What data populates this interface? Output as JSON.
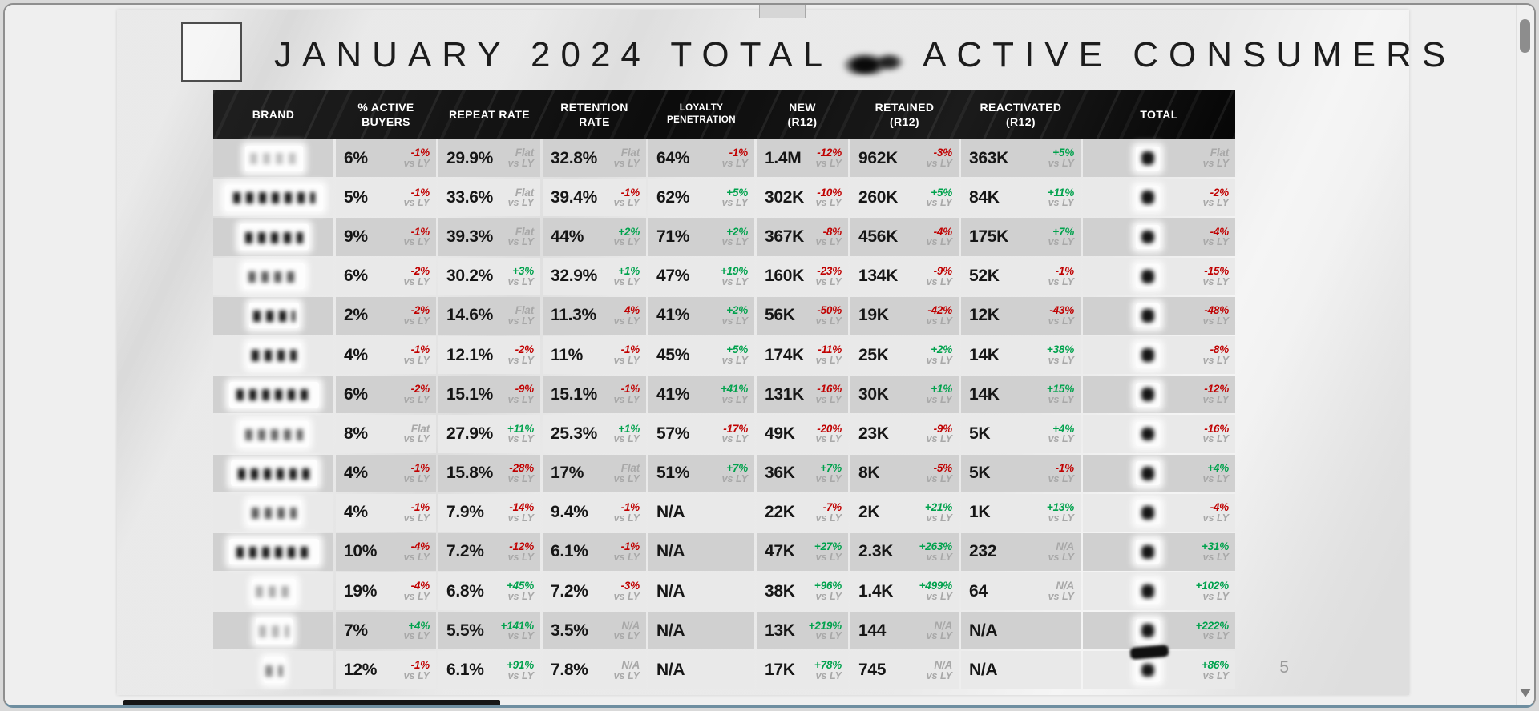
{
  "window": {
    "page_number": "5"
  },
  "slide": {
    "title_part1": "JANUARY 2024 TOTAL",
    "title_part2": "ACTIVE CONSUMERS"
  },
  "table": {
    "vs_ly": "vs LY",
    "columns": [
      {
        "lines": [
          "BRAND"
        ]
      },
      {
        "lines": [
          "% ACTIVE",
          "BUYERS"
        ]
      },
      {
        "lines": [
          "REPEAT RATE"
        ]
      },
      {
        "lines": [
          "RETENTION",
          "RATE"
        ]
      },
      {
        "lines": [
          "LOYALTY",
          "PENETRATION"
        ],
        "small": true
      },
      {
        "lines": [
          "NEW",
          "(R12)"
        ]
      },
      {
        "lines": [
          "RETAINED",
          "(R12)"
        ]
      },
      {
        "lines": [
          "REACTIVATED",
          "(R12)"
        ]
      },
      {
        "lines": [
          "TOTAL"
        ]
      }
    ],
    "rows": [
      {
        "active": {
          "v": "6%",
          "c": "-1%",
          "t": "down"
        },
        "repeat": {
          "v": "29.9%",
          "c": "Flat",
          "t": "flat"
        },
        "retention": {
          "v": "32.8%",
          "c": "Flat",
          "t": "flat"
        },
        "loyalty": {
          "v": "64%",
          "c": "-1%",
          "t": "down"
        },
        "new_r12": {
          "v": "1.4M",
          "c": "-12%",
          "t": "down"
        },
        "retained": {
          "v": "962K",
          "c": "-3%",
          "t": "down"
        },
        "reactivated": {
          "v": "363K",
          "c": "+5%",
          "t": "up"
        },
        "total": {
          "c": "Flat",
          "t": "flat"
        }
      },
      {
        "active": {
          "v": "5%",
          "c": "-1%",
          "t": "down"
        },
        "repeat": {
          "v": "33.6%",
          "c": "Flat",
          "t": "flat"
        },
        "retention": {
          "v": "39.4%",
          "c": "-1%",
          "t": "down"
        },
        "loyalty": {
          "v": "62%",
          "c": "+5%",
          "t": "up"
        },
        "new_r12": {
          "v": "302K",
          "c": "-10%",
          "t": "down"
        },
        "retained": {
          "v": "260K",
          "c": "+5%",
          "t": "up"
        },
        "reactivated": {
          "v": "84K",
          "c": "+11%",
          "t": "up"
        },
        "total": {
          "c": "-2%",
          "t": "down"
        }
      },
      {
        "active": {
          "v": "9%",
          "c": "-1%",
          "t": "down"
        },
        "repeat": {
          "v": "39.3%",
          "c": "Flat",
          "t": "flat"
        },
        "retention": {
          "v": "44%",
          "c": "+2%",
          "t": "up"
        },
        "loyalty": {
          "v": "71%",
          "c": "+2%",
          "t": "up"
        },
        "new_r12": {
          "v": "367K",
          "c": "-8%",
          "t": "down"
        },
        "retained": {
          "v": "456K",
          "c": "-4%",
          "t": "down"
        },
        "reactivated": {
          "v": "175K",
          "c": "+7%",
          "t": "up"
        },
        "total": {
          "c": "-4%",
          "t": "down"
        }
      },
      {
        "active": {
          "v": "6%",
          "c": "-2%",
          "t": "down"
        },
        "repeat": {
          "v": "30.2%",
          "c": "+3%",
          "t": "up"
        },
        "retention": {
          "v": "32.9%",
          "c": "+1%",
          "t": "up"
        },
        "loyalty": {
          "v": "47%",
          "c": "+19%",
          "t": "up"
        },
        "new_r12": {
          "v": "160K",
          "c": "-23%",
          "t": "down"
        },
        "retained": {
          "v": "134K",
          "c": "-9%",
          "t": "down"
        },
        "reactivated": {
          "v": "52K",
          "c": "-1%",
          "t": "down"
        },
        "total": {
          "c": "-15%",
          "t": "down"
        }
      },
      {
        "active": {
          "v": "2%",
          "c": "-2%",
          "t": "down"
        },
        "repeat": {
          "v": "14.6%",
          "c": "Flat",
          "t": "flat"
        },
        "retention": {
          "v": "11.3%",
          "c": "4%",
          "t": "down"
        },
        "loyalty": {
          "v": "41%",
          "c": "+2%",
          "t": "up"
        },
        "new_r12": {
          "v": "56K",
          "c": "-50%",
          "t": "down"
        },
        "retained": {
          "v": "19K",
          "c": "-42%",
          "t": "down"
        },
        "reactivated": {
          "v": "12K",
          "c": "-43%",
          "t": "down"
        },
        "total": {
          "c": "-48%",
          "t": "down"
        }
      },
      {
        "active": {
          "v": "4%",
          "c": "-1%",
          "t": "down"
        },
        "repeat": {
          "v": "12.1%",
          "c": "-2%",
          "t": "down"
        },
        "retention": {
          "v": "11%",
          "c": "-1%",
          "t": "down"
        },
        "loyalty": {
          "v": "45%",
          "c": "+5%",
          "t": "up"
        },
        "new_r12": {
          "v": "174K",
          "c": "-11%",
          "t": "down"
        },
        "retained": {
          "v": "25K",
          "c": "+2%",
          "t": "up"
        },
        "reactivated": {
          "v": "14K",
          "c": "+38%",
          "t": "up"
        },
        "total": {
          "c": "-8%",
          "t": "down"
        }
      },
      {
        "active": {
          "v": "6%",
          "c": "-2%",
          "t": "down"
        },
        "repeat": {
          "v": "15.1%",
          "c": "-9%",
          "t": "down"
        },
        "retention": {
          "v": "15.1%",
          "c": "-1%",
          "t": "down"
        },
        "loyalty": {
          "v": "41%",
          "c": "+41%",
          "t": "up"
        },
        "new_r12": {
          "v": "131K",
          "c": "-16%",
          "t": "down"
        },
        "retained": {
          "v": "30K",
          "c": "+1%",
          "t": "up"
        },
        "reactivated": {
          "v": "14K",
          "c": "+15%",
          "t": "up"
        },
        "total": {
          "c": "-12%",
          "t": "down"
        }
      },
      {
        "active": {
          "v": "8%",
          "c": "Flat",
          "t": "flat"
        },
        "repeat": {
          "v": "27.9%",
          "c": "+11%",
          "t": "up"
        },
        "retention": {
          "v": "25.3%",
          "c": "+1%",
          "t": "up"
        },
        "loyalty": {
          "v": "57%",
          "c": "-17%",
          "t": "down"
        },
        "new_r12": {
          "v": "49K",
          "c": "-20%",
          "t": "down"
        },
        "retained": {
          "v": "23K",
          "c": "-9%",
          "t": "down"
        },
        "reactivated": {
          "v": "5K",
          "c": "+4%",
          "t": "up"
        },
        "total": {
          "c": "-16%",
          "t": "down"
        }
      },
      {
        "active": {
          "v": "4%",
          "c": "-1%",
          "t": "down"
        },
        "repeat": {
          "v": "15.8%",
          "c": "-28%",
          "t": "down"
        },
        "retention": {
          "v": "17%",
          "c": "Flat",
          "t": "flat"
        },
        "loyalty": {
          "v": "51%",
          "c": "+7%",
          "t": "up"
        },
        "new_r12": {
          "v": "36K",
          "c": "+7%",
          "t": "up"
        },
        "retained": {
          "v": "8K",
          "c": "-5%",
          "t": "down"
        },
        "reactivated": {
          "v": "5K",
          "c": "-1%",
          "t": "down"
        },
        "total": {
          "c": "+4%",
          "t": "up"
        }
      },
      {
        "active": {
          "v": "4%",
          "c": "-1%",
          "t": "down"
        },
        "repeat": {
          "v": "7.9%",
          "c": "-14%",
          "t": "down"
        },
        "retention": {
          "v": "9.4%",
          "c": "-1%",
          "t": "down"
        },
        "loyalty": {
          "v": "N/A",
          "c": "",
          "t": "na"
        },
        "new_r12": {
          "v": "22K",
          "c": "-7%",
          "t": "down"
        },
        "retained": {
          "v": "2K",
          "c": "+21%",
          "t": "up"
        },
        "reactivated": {
          "v": "1K",
          "c": "+13%",
          "t": "up"
        },
        "total": {
          "c": "-4%",
          "t": "down"
        }
      },
      {
        "active": {
          "v": "10%",
          "c": "-4%",
          "t": "down"
        },
        "repeat": {
          "v": "7.2%",
          "c": "-12%",
          "t": "down"
        },
        "retention": {
          "v": "6.1%",
          "c": "-1%",
          "t": "down"
        },
        "loyalty": {
          "v": "N/A",
          "c": "",
          "t": "na"
        },
        "new_r12": {
          "v": "47K",
          "c": "+27%",
          "t": "up"
        },
        "retained": {
          "v": "2.3K",
          "c": "+263%",
          "t": "up"
        },
        "reactivated": {
          "v": "232",
          "c": "N/A",
          "t": "na"
        },
        "total": {
          "c": "+31%",
          "t": "up"
        }
      },
      {
        "active": {
          "v": "19%",
          "c": "-4%",
          "t": "down"
        },
        "repeat": {
          "v": "6.8%",
          "c": "+45%",
          "t": "up"
        },
        "retention": {
          "v": "7.2%",
          "c": "-3%",
          "t": "down"
        },
        "loyalty": {
          "v": "N/A",
          "c": "",
          "t": "na"
        },
        "new_r12": {
          "v": "38K",
          "c": "+96%",
          "t": "up"
        },
        "retained": {
          "v": "1.4K",
          "c": "+499%",
          "t": "up"
        },
        "reactivated": {
          "v": "64",
          "c": "N/A",
          "t": "na"
        },
        "total": {
          "c": "+102%",
          "t": "up"
        }
      },
      {
        "active": {
          "v": "7%",
          "c": "+4%",
          "t": "up"
        },
        "repeat": {
          "v": "5.5%",
          "c": "+141%",
          "t": "up"
        },
        "retention": {
          "v": "3.5%",
          "c": "N/A",
          "t": "na"
        },
        "loyalty": {
          "v": "N/A",
          "c": "",
          "t": "na"
        },
        "new_r12": {
          "v": "13K",
          "c": "+219%",
          "t": "up"
        },
        "retained": {
          "v": "144",
          "c": "N/A",
          "t": "na"
        },
        "reactivated": {
          "v": "N/A",
          "c": "",
          "t": "na"
        },
        "total": {
          "c": "+222%",
          "t": "up"
        }
      },
      {
        "active": {
          "v": "12%",
          "c": "-1%",
          "t": "down"
        },
        "repeat": {
          "v": "6.1%",
          "c": "+91%",
          "t": "up"
        },
        "retention": {
          "v": "7.8%",
          "c": "N/A",
          "t": "na"
        },
        "loyalty": {
          "v": "N/A",
          "c": "",
          "t": "na"
        },
        "new_r12": {
          "v": "17K",
          "c": "+78%",
          "t": "up"
        },
        "retained": {
          "v": "745",
          "c": "N/A",
          "t": "na"
        },
        "reactivated": {
          "v": "N/A",
          "c": "",
          "t": "na"
        },
        "total": {
          "c": "+86%",
          "t": "up"
        }
      }
    ]
  }
}
